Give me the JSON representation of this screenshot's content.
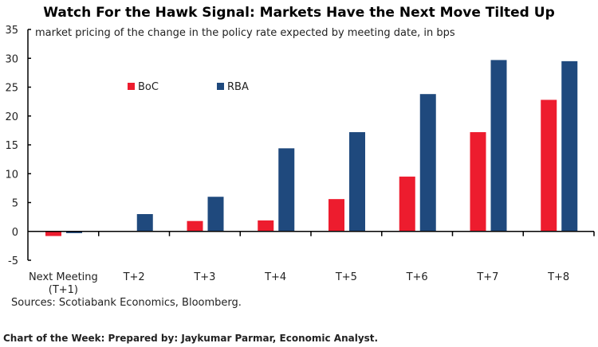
{
  "chart_data": {
    "type": "bar",
    "title": "Watch For the Hawk Signal: Markets Have the Next Move Tilted Up",
    "subtitle": "market pricing of the change in the policy rate expected by meeting date, in bps",
    "categories": [
      [
        "Next Meeting",
        "(T+1)"
      ],
      [
        "T+2"
      ],
      [
        "T+3"
      ],
      [
        "T+4"
      ],
      [
        "T+5"
      ],
      [
        "T+6"
      ],
      [
        "T+7"
      ],
      [
        "T+8"
      ]
    ],
    "series": [
      {
        "name": "BoC",
        "color": "#ED1C2E",
        "values": [
          -0.8,
          0.1,
          1.8,
          1.9,
          5.6,
          9.5,
          17.2,
          22.8
        ]
      },
      {
        "name": "RBA",
        "color": "#1F497D",
        "values": [
          -0.3,
          3.0,
          6.0,
          14.4,
          17.2,
          23.8,
          29.7,
          29.5
        ]
      }
    ],
    "ylim": [
      -5,
      35
    ],
    "yticks": [
      -5,
      0,
      5,
      10,
      15,
      20,
      25,
      30,
      35
    ],
    "grid": false,
    "legend": "upper-left"
  },
  "source": "Sources: Scotiabank Economics, Bloomberg.",
  "footer": "Chart of the Week: Prepared by: Jaykumar Parmar, Economic Analyst."
}
